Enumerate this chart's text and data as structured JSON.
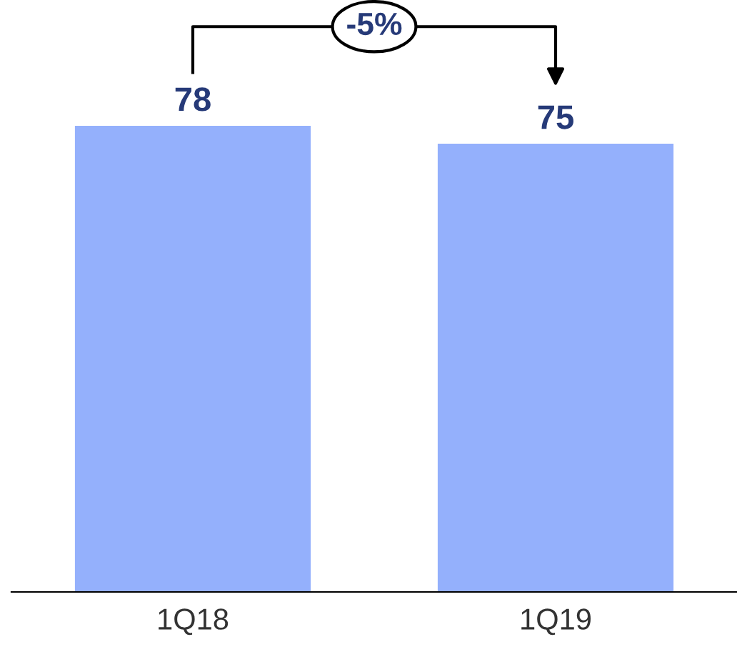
{
  "chart_data": {
    "type": "bar",
    "categories": [
      "1Q18",
      "1Q19"
    ],
    "values": [
      78,
      75
    ],
    "color": "#94b0fc",
    "data_labels": true,
    "annotations": [
      "-5%"
    ],
    "grid": false,
    "legend": false
  }
}
